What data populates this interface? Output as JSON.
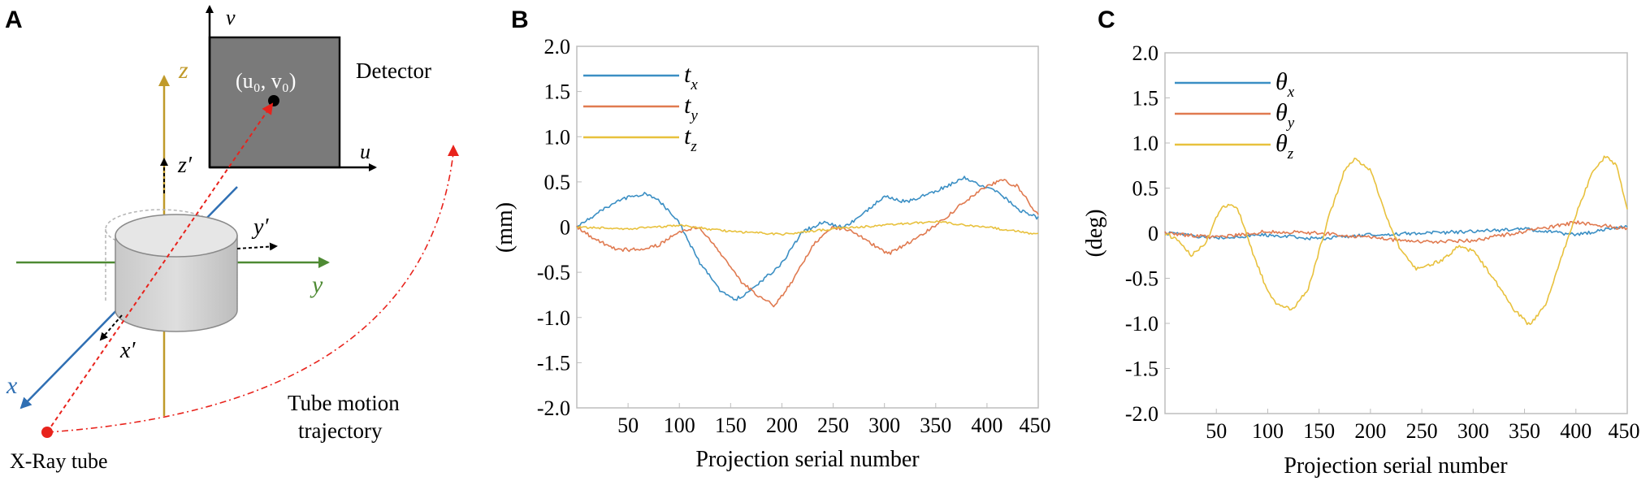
{
  "panel_a": {
    "label": "A",
    "detector_label": "Detector",
    "v_axis": "v",
    "u_axis": "u",
    "principal_point": "(u₀, v₀)",
    "z_axis": "z",
    "z_prime": "z′",
    "y_axis": "y",
    "y_prime": "y′",
    "x_axis": "x",
    "x_prime": "x′",
    "trajectory_line1": "Tube motion",
    "trajectory_line2": "trajectory",
    "tube_label": "X-Ray tube",
    "colors": {
      "z": "#c09a2a",
      "y": "#4e8a33",
      "x": "#2f6fb3",
      "ray": "#e8231c",
      "detector": "#7a7a7a"
    }
  },
  "chart_data": [
    {
      "type": "line",
      "panel_label": "B",
      "xlabel": "Projection serial number",
      "ylabel": "(mm)",
      "xlim": [
        0,
        450
      ],
      "ylim": [
        -2.0,
        2.0
      ],
      "xticks": [
        50,
        100,
        150,
        200,
        250,
        300,
        350,
        400,
        450
      ],
      "yticks": [
        2.0,
        1.5,
        1.0,
        0.5,
        0,
        -0.5,
        -1.0,
        -1.5,
        -2.0
      ],
      "legend_position": "top-left",
      "series": [
        {
          "name": "t_x",
          "legend_main": "t",
          "legend_sub": "x",
          "color": "#3b8fc4",
          "x": [
            0,
            20,
            40,
            65,
            80,
            100,
            120,
            140,
            155,
            170,
            185,
            200,
            220,
            240,
            260,
            280,
            300,
            320,
            340,
            360,
            378,
            395,
            410,
            430,
            450
          ],
          "y": [
            0,
            0.15,
            0.3,
            0.37,
            0.3,
            0.05,
            -0.4,
            -0.7,
            -0.8,
            -0.7,
            -0.55,
            -0.4,
            -0.05,
            0.05,
            0.0,
            0.15,
            0.35,
            0.28,
            0.35,
            0.45,
            0.55,
            0.45,
            0.4,
            0.2,
            0.1
          ]
        },
        {
          "name": "t_y",
          "legend_main": "t",
          "legend_sub": "y",
          "color": "#e07a50",
          "x": [
            0,
            20,
            40,
            60,
            80,
            100,
            120,
            140,
            160,
            175,
            193,
            210,
            230,
            250,
            270,
            290,
            303,
            320,
            340,
            360,
            380,
            400,
            415,
            430,
            445,
            450
          ],
          "y": [
            0,
            -0.15,
            -0.25,
            -0.25,
            -0.2,
            -0.05,
            0.0,
            -0.3,
            -0.6,
            -0.75,
            -0.87,
            -0.6,
            -0.2,
            0.0,
            -0.05,
            -0.2,
            -0.3,
            -0.2,
            -0.05,
            0.1,
            0.3,
            0.45,
            0.52,
            0.45,
            0.2,
            0.15
          ]
        },
        {
          "name": "t_z",
          "legend_main": "t",
          "legend_sub": "z",
          "color": "#e8c13d",
          "x": [
            0,
            50,
            100,
            150,
            200,
            250,
            300,
            350,
            400,
            450
          ],
          "y": [
            0,
            -0.02,
            0.02,
            -0.05,
            -0.08,
            -0.02,
            0.02,
            0.06,
            0.0,
            -0.08
          ]
        }
      ]
    },
    {
      "type": "line",
      "panel_label": "C",
      "xlabel": "Projection serial number",
      "ylabel": "(deg)",
      "xlim": [
        0,
        450
      ],
      "ylim": [
        -2.0,
        2.0
      ],
      "xticks": [
        50,
        100,
        150,
        200,
        250,
        300,
        350,
        400,
        450
      ],
      "yticks": [
        2.0,
        1.5,
        1.0,
        0.5,
        0,
        -0.5,
        -1.0,
        -1.5,
        -2.0
      ],
      "legend_position": "top-left",
      "series": [
        {
          "name": "θ_x",
          "legend_main": "θ",
          "legend_sub": "x",
          "color": "#3b8fc4",
          "x": [
            0,
            50,
            100,
            150,
            200,
            250,
            300,
            350,
            400,
            450
          ],
          "y": [
            0,
            -0.05,
            -0.02,
            -0.06,
            -0.02,
            0.0,
            0.02,
            0.05,
            -0.02,
            0.08
          ]
        },
        {
          "name": "θ_y",
          "legend_main": "θ",
          "legend_sub": "y",
          "color": "#e07a50",
          "x": [
            0,
            50,
            100,
            150,
            200,
            250,
            300,
            350,
            400,
            450
          ],
          "y": [
            0,
            -0.05,
            0.02,
            0.0,
            -0.05,
            -0.1,
            -0.08,
            0.02,
            0.12,
            0.05
          ]
        },
        {
          "name": "θ_z",
          "legend_main": "θ",
          "legend_sub": "z",
          "color": "#e8c13d",
          "x": [
            0,
            15,
            25,
            40,
            55,
            70,
            85,
            100,
            110,
            125,
            140,
            160,
            175,
            185,
            200,
            215,
            230,
            245,
            258,
            270,
            285,
            300,
            320,
            340,
            355,
            370,
            385,
            400,
            415,
            428,
            440,
            450
          ],
          "y": [
            0,
            -0.1,
            -0.25,
            -0.1,
            0.3,
            0.3,
            -0.2,
            -0.65,
            -0.8,
            -0.85,
            -0.6,
            0.2,
            0.7,
            0.82,
            0.7,
            0.2,
            -0.2,
            -0.4,
            -0.35,
            -0.3,
            -0.15,
            -0.2,
            -0.5,
            -0.85,
            -1.02,
            -0.8,
            -0.3,
            0.2,
            0.65,
            0.85,
            0.75,
            0.25
          ]
        }
      ]
    }
  ]
}
